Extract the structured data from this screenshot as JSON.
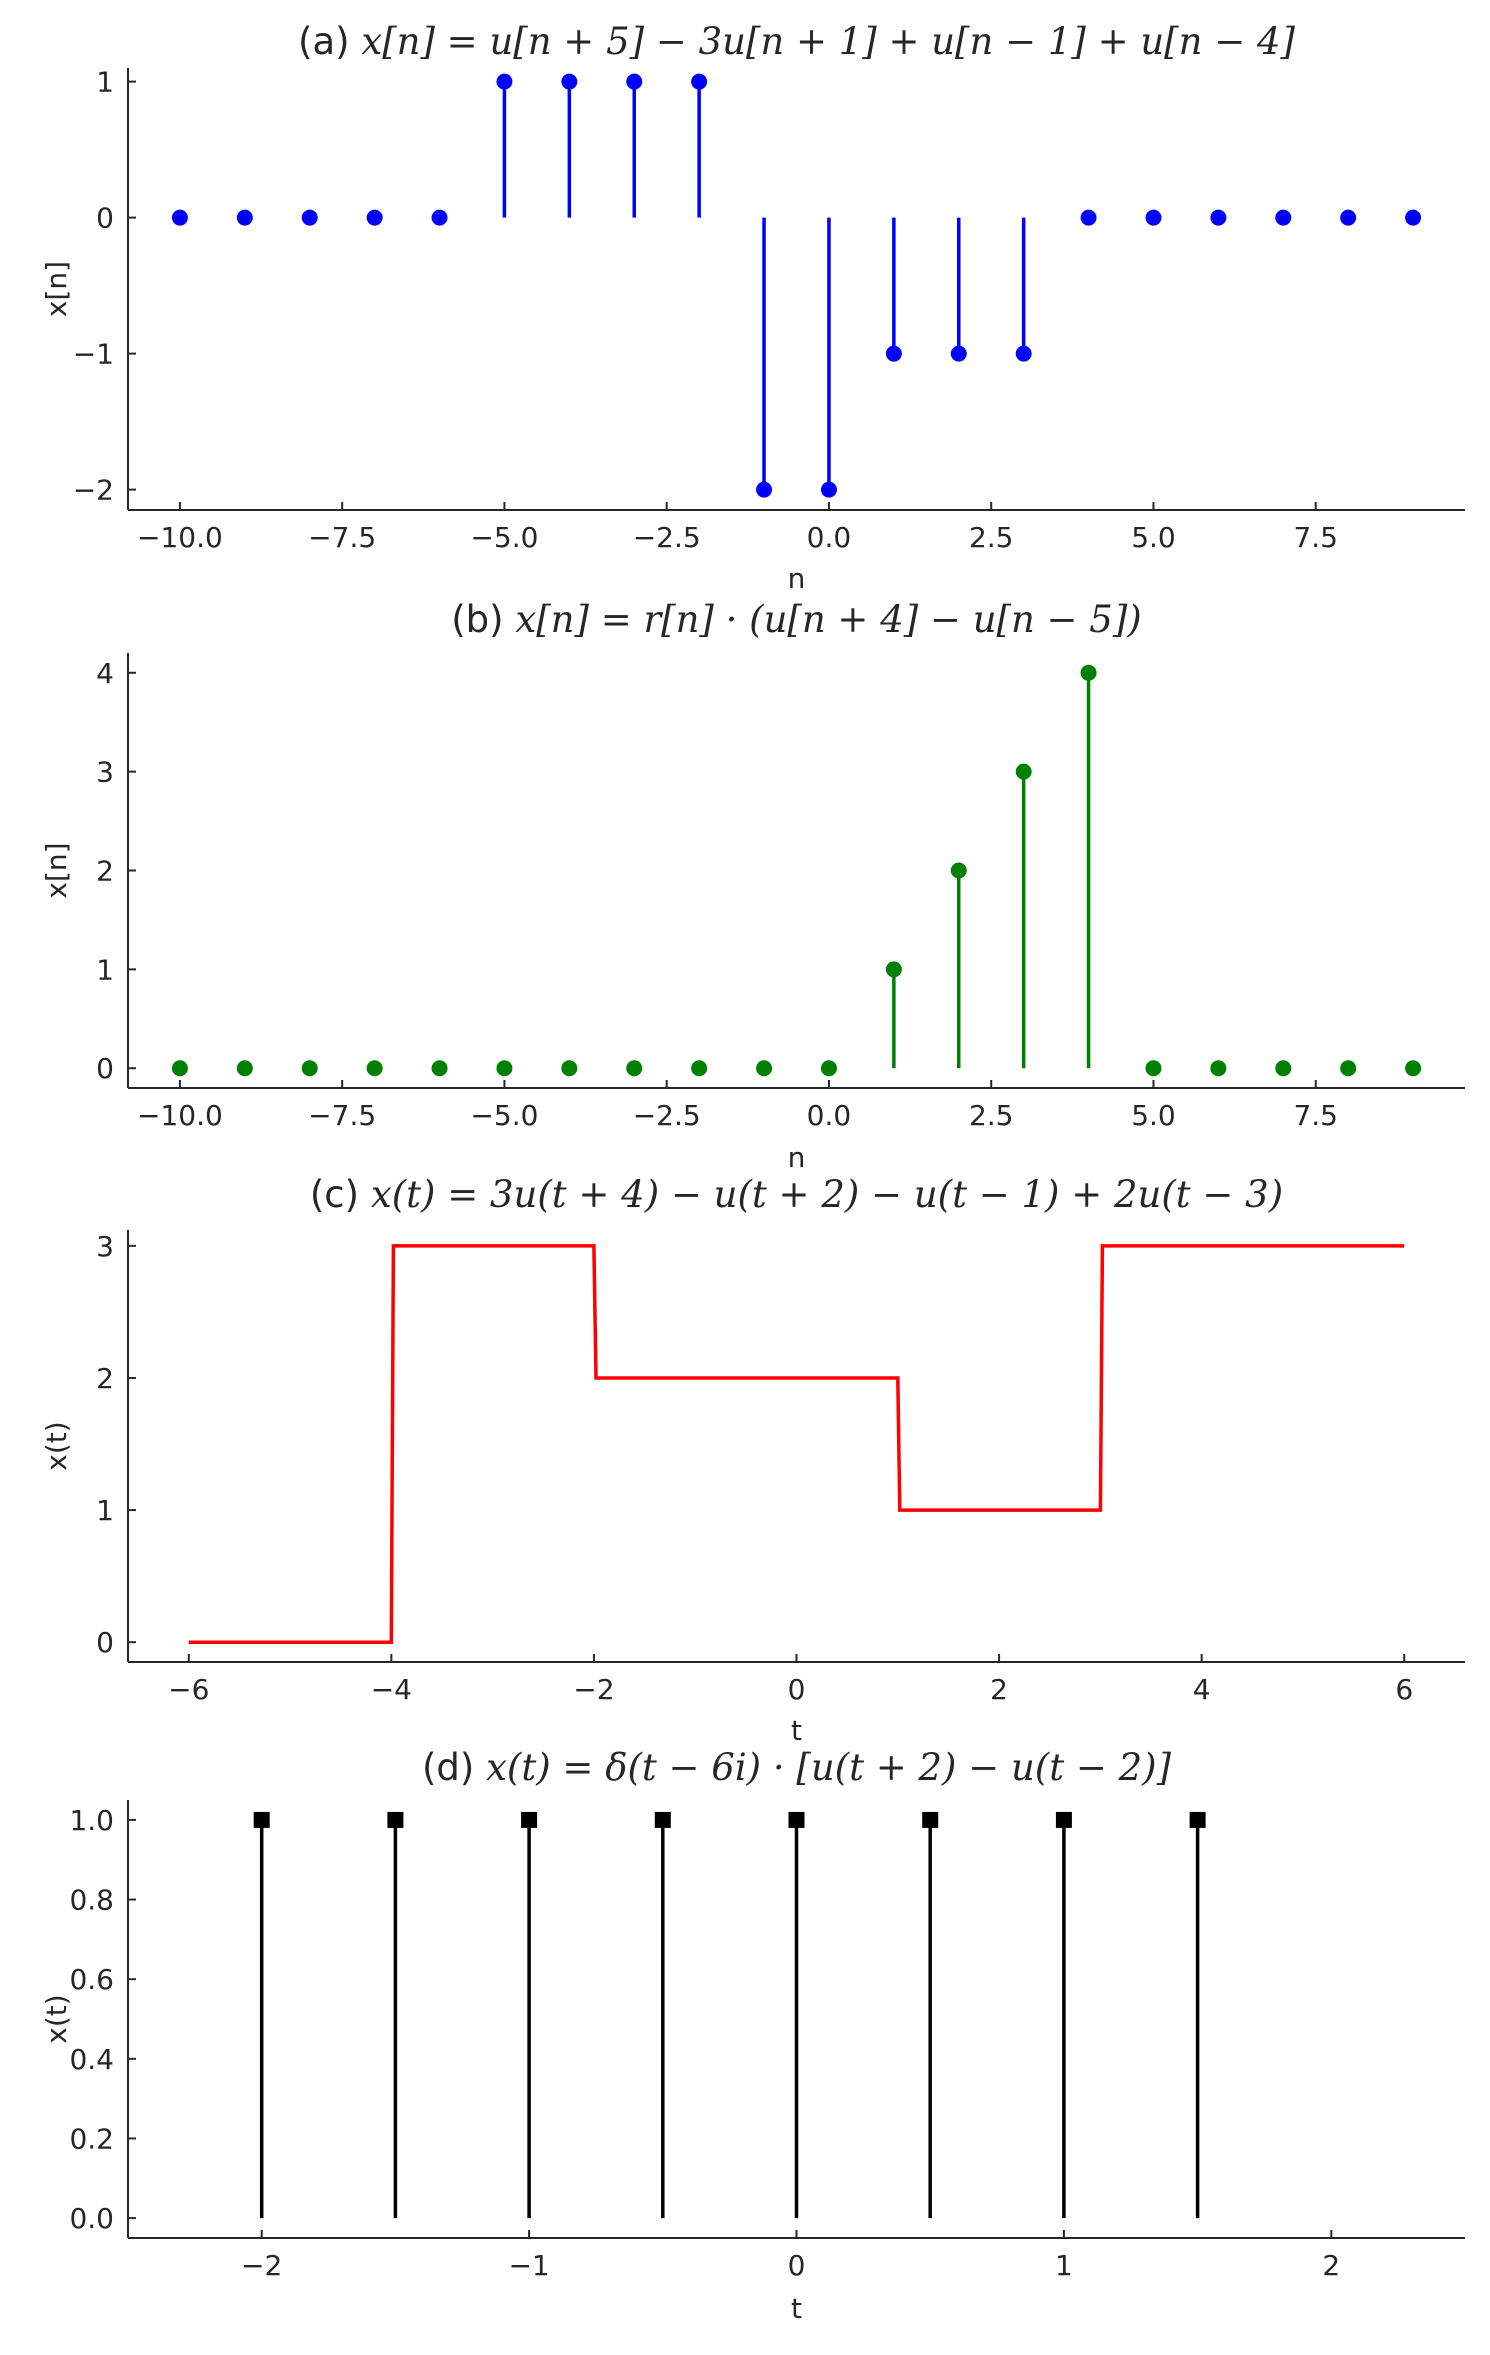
{
  "chart_data": [
    {
      "id": "a",
      "type": "stem",
      "title_prefix": "(a) ",
      "title_math": "x[n] = u[n + 5] − 3u[n + 1] + u[n − 1] + u[n − 4]",
      "xlabel": "n",
      "ylabel": "x[n]",
      "xlim": [
        -10.8,
        9.8
      ],
      "ylim": [
        -2.15,
        1.1
      ],
      "xticks": [
        -10.0,
        -7.5,
        -5.0,
        -2.5,
        0.0,
        2.5,
        5.0,
        7.5
      ],
      "xtick_labels": [
        "−10.0",
        "−7.5",
        "−5.0",
        "−2.5",
        "0.0",
        "2.5",
        "5.0",
        "7.5"
      ],
      "yticks": [
        -2,
        -1,
        0,
        1
      ],
      "ytick_labels": [
        "−2",
        "−1",
        "0",
        "1"
      ],
      "color": "#0000ff",
      "marker": "circle",
      "x": [
        -10,
        -9,
        -8,
        -7,
        -6,
        -5,
        -4,
        -3,
        -2,
        -1,
        0,
        1,
        2,
        3,
        4,
        5,
        6,
        7,
        8,
        9
      ],
      "y": [
        0,
        0,
        0,
        0,
        0,
        1,
        1,
        1,
        1,
        -2,
        -2,
        -1,
        -1,
        -1,
        0,
        0,
        0,
        0,
        0,
        0
      ]
    },
    {
      "id": "b",
      "type": "stem",
      "title_prefix": "(b) ",
      "title_math": "x[n] = r[n] · (u[n + 4] − u[n − 5])",
      "xlabel": "n",
      "ylabel": "x[n]",
      "xlim": [
        -10.8,
        9.8
      ],
      "ylim": [
        -0.2,
        4.2
      ],
      "xticks": [
        -10.0,
        -7.5,
        -5.0,
        -2.5,
        0.0,
        2.5,
        5.0,
        7.5
      ],
      "xtick_labels": [
        "−10.0",
        "−7.5",
        "−5.0",
        "−2.5",
        "0.0",
        "2.5",
        "5.0",
        "7.5"
      ],
      "yticks": [
        0,
        1,
        2,
        3,
        4
      ],
      "ytick_labels": [
        "0",
        "1",
        "2",
        "3",
        "4"
      ],
      "color": "#008000",
      "marker": "circle",
      "x": [
        -10,
        -9,
        -8,
        -7,
        -6,
        -5,
        -4,
        -3,
        -2,
        -1,
        0,
        1,
        2,
        3,
        4,
        5,
        6,
        7,
        8,
        9
      ],
      "y": [
        0,
        0,
        0,
        0,
        0,
        0,
        0,
        0,
        0,
        0,
        0,
        1,
        2,
        3,
        4,
        0,
        0,
        0,
        0,
        0
      ]
    },
    {
      "id": "c",
      "type": "line",
      "title_prefix": "(c) ",
      "title_math": "x(t) = 3u(t + 4) − u(t + 2) − u(t − 1) + 2u(t − 3)",
      "xlabel": "t",
      "ylabel": "x(t)",
      "xlim": [
        -6.6,
        6.6
      ],
      "ylim": [
        -0.15,
        3.12
      ],
      "xticks": [
        -6,
        -4,
        -2,
        0,
        2,
        4,
        6
      ],
      "xtick_labels": [
        "−6",
        "−4",
        "−2",
        "0",
        "2",
        "4",
        "6"
      ],
      "yticks": [
        0,
        1,
        2,
        3
      ],
      "ytick_labels": [
        "0",
        "1",
        "2",
        "3"
      ],
      "color": "#ff0000",
      "x": [
        -6,
        -4,
        -3.98,
        -2,
        -1.98,
        1,
        1.02,
        3,
        3.02,
        6
      ],
      "y": [
        0,
        0,
        3,
        3,
        2,
        2,
        1,
        1,
        3,
        3
      ]
    },
    {
      "id": "d",
      "type": "stem",
      "title_prefix": "(d) ",
      "title_math": "x(t) = δ(t − 6i) · [u(t + 2) − u(t − 2)]",
      "xlabel": "t",
      "ylabel": "x(t)",
      "xlim": [
        -2.5,
        2.5
      ],
      "ylim": [
        -0.05,
        1.05
      ],
      "xticks": [
        -2,
        -1,
        0,
        1,
        2
      ],
      "xtick_labels": [
        "−2",
        "−1",
        "0",
        "1",
        "2"
      ],
      "yticks": [
        0.0,
        0.2,
        0.4,
        0.6,
        0.8,
        1.0
      ],
      "ytick_labels": [
        "0.0",
        "0.2",
        "0.4",
        "0.6",
        "0.8",
        "1.0"
      ],
      "color": "#000000",
      "marker": "square",
      "x": [
        -2,
        -1.5,
        -1,
        -0.5,
        0,
        0.5,
        1,
        1.5
      ],
      "y": [
        1,
        1,
        1,
        1,
        1,
        1,
        1,
        1
      ]
    }
  ]
}
